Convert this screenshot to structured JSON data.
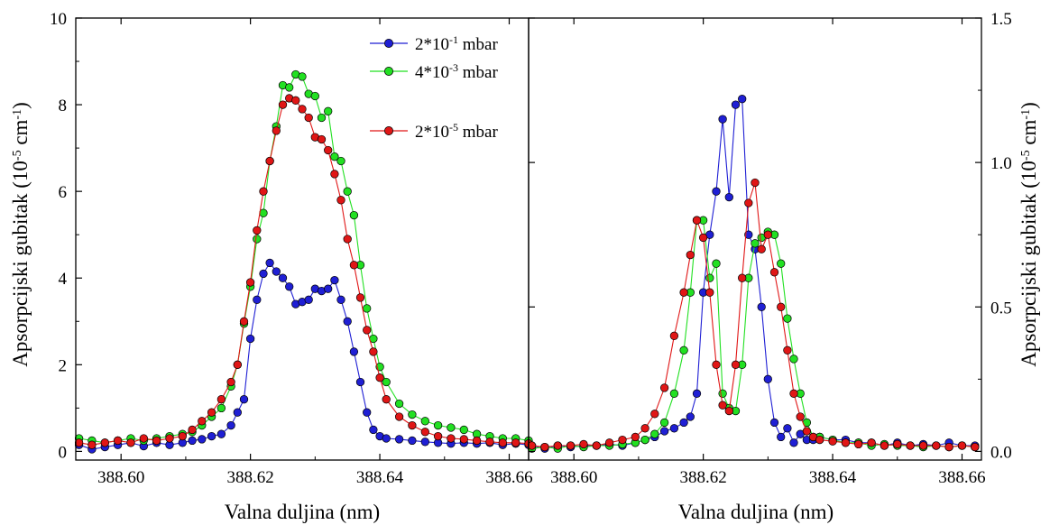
{
  "chart_data": [
    {
      "type": "scatter",
      "panel": "left",
      "xlabel": "Valna duljina (nm)",
      "ylabel": "Apsorpcijski gubitak (10^-5 cm^-1)",
      "ylabel_parts": {
        "base": "Apsorpcijski gubitak (10",
        "exp1": "-5",
        "mid": " cm",
        "exp2": "-1",
        "end": ")"
      },
      "xlim": [
        388.593,
        388.663
      ],
      "ylim": [
        -0.2,
        10
      ],
      "xticks": [
        388.6,
        388.62,
        388.64,
        388.66
      ],
      "xtick_labels": [
        "388.60",
        "388.62",
        "388.64",
        "388.66"
      ],
      "yticks": [
        0,
        2,
        4,
        6,
        8,
        10
      ],
      "ytick_labels": [
        "0",
        "2",
        "4",
        "6",
        "8",
        "10"
      ],
      "legend_position": "top-right",
      "grid": false,
      "series": [
        {
          "name": "2*10^-1 mbar",
          "legend": {
            "base": "2*10",
            "exp": "-1",
            "unit": " mbar"
          },
          "color": "#1f1fd4",
          "x": [
            388.5935,
            388.5955,
            388.5975,
            388.5995,
            388.6015,
            388.6035,
            388.6055,
            388.6075,
            388.6095,
            388.611,
            388.6125,
            388.614,
            388.6155,
            388.617,
            388.618,
            388.619,
            388.62,
            388.621,
            388.622,
            388.623,
            388.624,
            388.625,
            388.626,
            388.627,
            388.628,
            388.629,
            388.63,
            388.631,
            388.632,
            388.633,
            388.634,
            388.635,
            388.636,
            388.637,
            388.638,
            388.639,
            388.64,
            388.641,
            388.643,
            388.645,
            388.647,
            388.649,
            388.651,
            388.653,
            388.655,
            388.657,
            388.659,
            388.661,
            388.663
          ],
          "y": [
            0.15,
            0.05,
            0.1,
            0.15,
            0.2,
            0.12,
            0.2,
            0.15,
            0.2,
            0.25,
            0.28,
            0.35,
            0.4,
            0.6,
            0.9,
            1.2,
            2.6,
            3.5,
            4.1,
            4.35,
            4.15,
            4.0,
            3.8,
            3.4,
            3.45,
            3.5,
            3.75,
            3.7,
            3.75,
            3.95,
            3.5,
            3.0,
            2.3,
            1.6,
            0.9,
            0.5,
            0.35,
            0.3,
            0.28,
            0.25,
            0.22,
            0.2,
            0.18,
            0.2,
            0.18,
            0.2,
            0.15,
            0.18,
            0.15
          ]
        },
        {
          "name": "4*10^-3 mbar",
          "legend": {
            "base": "4*10",
            "exp": "-3",
            "unit": " mbar"
          },
          "color": "#22e022",
          "x": [
            388.5935,
            388.5955,
            388.5975,
            388.5995,
            388.6015,
            388.6035,
            388.6055,
            388.6075,
            388.6095,
            388.611,
            388.6125,
            388.614,
            388.6155,
            388.617,
            388.618,
            388.619,
            388.62,
            388.621,
            388.622,
            388.623,
            388.624,
            388.625,
            388.626,
            388.627,
            388.628,
            388.629,
            388.63,
            388.631,
            388.632,
            388.633,
            388.634,
            388.635,
            388.636,
            388.637,
            388.638,
            388.639,
            388.64,
            388.641,
            388.643,
            388.645,
            388.647,
            388.649,
            388.651,
            388.653,
            388.655,
            388.657,
            388.659,
            388.661,
            388.663
          ],
          "y": [
            0.3,
            0.25,
            0.2,
            0.25,
            0.3,
            0.25,
            0.3,
            0.35,
            0.4,
            0.45,
            0.6,
            0.8,
            1.0,
            1.5,
            2.0,
            2.95,
            3.8,
            4.9,
            5.5,
            6.7,
            7.5,
            8.45,
            8.4,
            8.7,
            8.65,
            8.25,
            8.2,
            7.7,
            7.85,
            6.8,
            6.7,
            6.0,
            5.45,
            4.3,
            3.3,
            2.6,
            1.95,
            1.6,
            1.1,
            0.85,
            0.7,
            0.6,
            0.55,
            0.5,
            0.4,
            0.35,
            0.3,
            0.3,
            0.25
          ]
        },
        {
          "name": "2*10^-5 mbar",
          "legend": {
            "base": "2*10",
            "exp": "-5",
            "unit": " mbar"
          },
          "color": "#e01616",
          "x": [
            388.5935,
            388.5955,
            388.5975,
            388.5995,
            388.6015,
            388.6035,
            388.6055,
            388.6075,
            388.6095,
            388.611,
            388.6125,
            388.614,
            388.6155,
            388.617,
            388.618,
            388.619,
            388.62,
            388.621,
            388.622,
            388.623,
            388.624,
            388.625,
            388.626,
            388.627,
            388.628,
            388.629,
            388.63,
            388.631,
            388.632,
            388.633,
            388.634,
            388.635,
            388.636,
            388.637,
            388.638,
            388.639,
            388.64,
            388.641,
            388.643,
            388.645,
            388.647,
            388.649,
            388.651,
            388.653,
            388.655,
            388.657,
            388.659,
            388.661,
            388.663
          ],
          "y": [
            0.2,
            0.15,
            0.2,
            0.25,
            0.2,
            0.3,
            0.25,
            0.3,
            0.35,
            0.5,
            0.7,
            0.9,
            1.2,
            1.6,
            2.0,
            3.0,
            3.9,
            5.1,
            6.0,
            6.7,
            7.4,
            8.0,
            8.15,
            8.1,
            7.9,
            7.7,
            7.25,
            7.2,
            6.95,
            6.4,
            5.8,
            4.9,
            4.3,
            3.55,
            2.8,
            2.3,
            1.7,
            1.2,
            0.8,
            0.6,
            0.45,
            0.35,
            0.3,
            0.28,
            0.25,
            0.22,
            0.2,
            0.2,
            0.18
          ]
        }
      ]
    },
    {
      "type": "scatter",
      "panel": "right",
      "xlabel": "Valna duljina (nm)",
      "ylabel": "Apsorpcijski gubitak (10^-5 cm^-1)",
      "ylabel_parts": {
        "base": "Apsorpcijski gubitak (10",
        "exp1": "-5",
        "mid": " cm",
        "exp2": "-1",
        "end": ")"
      },
      "xlim": [
        388.593,
        388.663
      ],
      "ylim": [
        -0.03,
        1.5
      ],
      "xticks": [
        388.6,
        388.62,
        388.64,
        388.66
      ],
      "xtick_labels": [
        "388.60",
        "388.62",
        "388.64",
        "388.66"
      ],
      "yticks": [
        0,
        0.5,
        1.0,
        1.5
      ],
      "ytick_labels": [
        "0.0",
        "0.5",
        "1.0",
        "1.5"
      ],
      "grid": false,
      "series": [
        {
          "name": "2*10^-1 mbar",
          "color": "#1f1fd4",
          "x": [
            388.5935,
            388.5955,
            388.5975,
            388.5995,
            388.6015,
            388.6035,
            388.6055,
            388.6075,
            388.6095,
            388.611,
            388.6125,
            388.614,
            388.6155,
            388.617,
            388.618,
            388.619,
            388.62,
            388.621,
            388.622,
            388.623,
            388.624,
            388.625,
            388.626,
            388.627,
            388.628,
            388.629,
            388.63,
            388.631,
            388.632,
            388.633,
            388.634,
            388.635,
            388.636,
            388.637,
            388.638,
            388.64,
            388.642,
            388.644,
            388.646,
            388.648,
            388.65,
            388.652,
            388.654,
            388.656,
            388.658,
            388.66,
            388.662
          ],
          "y": [
            0.02,
            0.01,
            0.02,
            0.015,
            0.02,
            0.02,
            0.025,
            0.02,
            0.03,
            0.04,
            0.05,
            0.07,
            0.08,
            0.1,
            0.12,
            0.2,
            0.55,
            0.75,
            0.9,
            1.15,
            0.88,
            1.2,
            1.22,
            0.75,
            0.7,
            0.5,
            0.25,
            0.1,
            0.05,
            0.08,
            0.03,
            0.06,
            0.04,
            0.04,
            0.05,
            0.04,
            0.04,
            0.03,
            0.03,
            0.02,
            0.03,
            0.02,
            0.025,
            0.02,
            0.03,
            0.02,
            0.02
          ],
          "x_override": [
            388.5935,
            388.5955,
            388.5975,
            388.5995,
            388.6015,
            388.6035,
            388.6055,
            388.6075,
            388.6095,
            388.611,
            388.6125,
            388.614,
            388.6155,
            388.617,
            388.618,
            388.619,
            388.62,
            388.621,
            388.622,
            388.623,
            388.624,
            388.625,
            388.626,
            388.627,
            388.628,
            388.629,
            388.63,
            388.631,
            388.632,
            388.633,
            388.634,
            388.635,
            388.636,
            388.637,
            388.638,
            388.64,
            388.642,
            388.644,
            388.646,
            388.648,
            388.65,
            388.652,
            388.654,
            388.656,
            388.658,
            388.66,
            388.662
          ]
        },
        {
          "name": "4*10^-3 mbar",
          "color": "#22e022",
          "x": [
            388.5935,
            388.5955,
            388.5975,
            388.5995,
            388.6015,
            388.6035,
            388.6055,
            388.6075,
            388.6095,
            388.611,
            388.6125,
            388.614,
            388.6155,
            388.617,
            388.618,
            388.619,
            388.62,
            388.621,
            388.622,
            388.623,
            388.624,
            388.625,
            388.626,
            388.627,
            388.628,
            388.629,
            388.63,
            388.631,
            388.632,
            388.633,
            388.634,
            388.635,
            388.636,
            388.637,
            388.638,
            388.64,
            388.642,
            388.644,
            388.646,
            388.648,
            388.65,
            388.652,
            388.654,
            388.656,
            388.658,
            388.66,
            388.662
          ],
          "y": [
            0.01,
            0.015,
            0.01,
            0.02,
            0.015,
            0.02,
            0.02,
            0.025,
            0.03,
            0.04,
            0.06,
            0.1,
            0.2,
            0.35,
            0.55,
            0.8,
            0.8,
            0.6,
            0.65,
            0.2,
            0.15,
            0.14,
            0.3,
            0.6,
            0.72,
            0.74,
            0.76,
            0.75,
            0.65,
            0.46,
            0.32,
            0.2,
            0.1,
            0.05,
            0.05,
            0.04,
            0.03,
            0.03,
            0.02,
            0.025,
            0.02,
            0.02,
            0.015,
            0.02,
            0.015,
            0.02,
            0.015
          ]
        },
        {
          "name": "2*10^-5 mbar",
          "color": "#e01616",
          "x": [
            388.5935,
            388.5955,
            388.5975,
            388.5995,
            388.6015,
            388.6035,
            388.6055,
            388.6075,
            388.6095,
            388.611,
            388.6125,
            388.614,
            388.6155,
            388.617,
            388.618,
            388.619,
            388.62,
            388.621,
            388.622,
            388.623,
            388.624,
            388.625,
            388.626,
            388.627,
            388.628,
            388.629,
            388.63,
            388.631,
            388.632,
            388.633,
            388.634,
            388.635,
            388.636,
            388.637,
            388.638,
            388.64,
            388.642,
            388.644,
            388.646,
            388.648,
            388.65,
            388.652,
            388.654,
            388.656,
            388.658,
            388.66,
            388.662
          ],
          "y": [
            0.02,
            0.015,
            0.02,
            0.02,
            0.025,
            0.02,
            0.03,
            0.04,
            0.05,
            0.08,
            0.13,
            0.22,
            0.4,
            0.55,
            0.68,
            0.8,
            0.74,
            0.55,
            0.3,
            0.16,
            0.14,
            0.3,
            0.6,
            0.86,
            0.93,
            0.7,
            0.75,
            0.62,
            0.5,
            0.35,
            0.2,
            0.12,
            0.07,
            0.05,
            0.04,
            0.035,
            0.03,
            0.025,
            0.03,
            0.02,
            0.025,
            0.02,
            0.02,
            0.02,
            0.015,
            0.02,
            0.015
          ]
        }
      ]
    }
  ]
}
